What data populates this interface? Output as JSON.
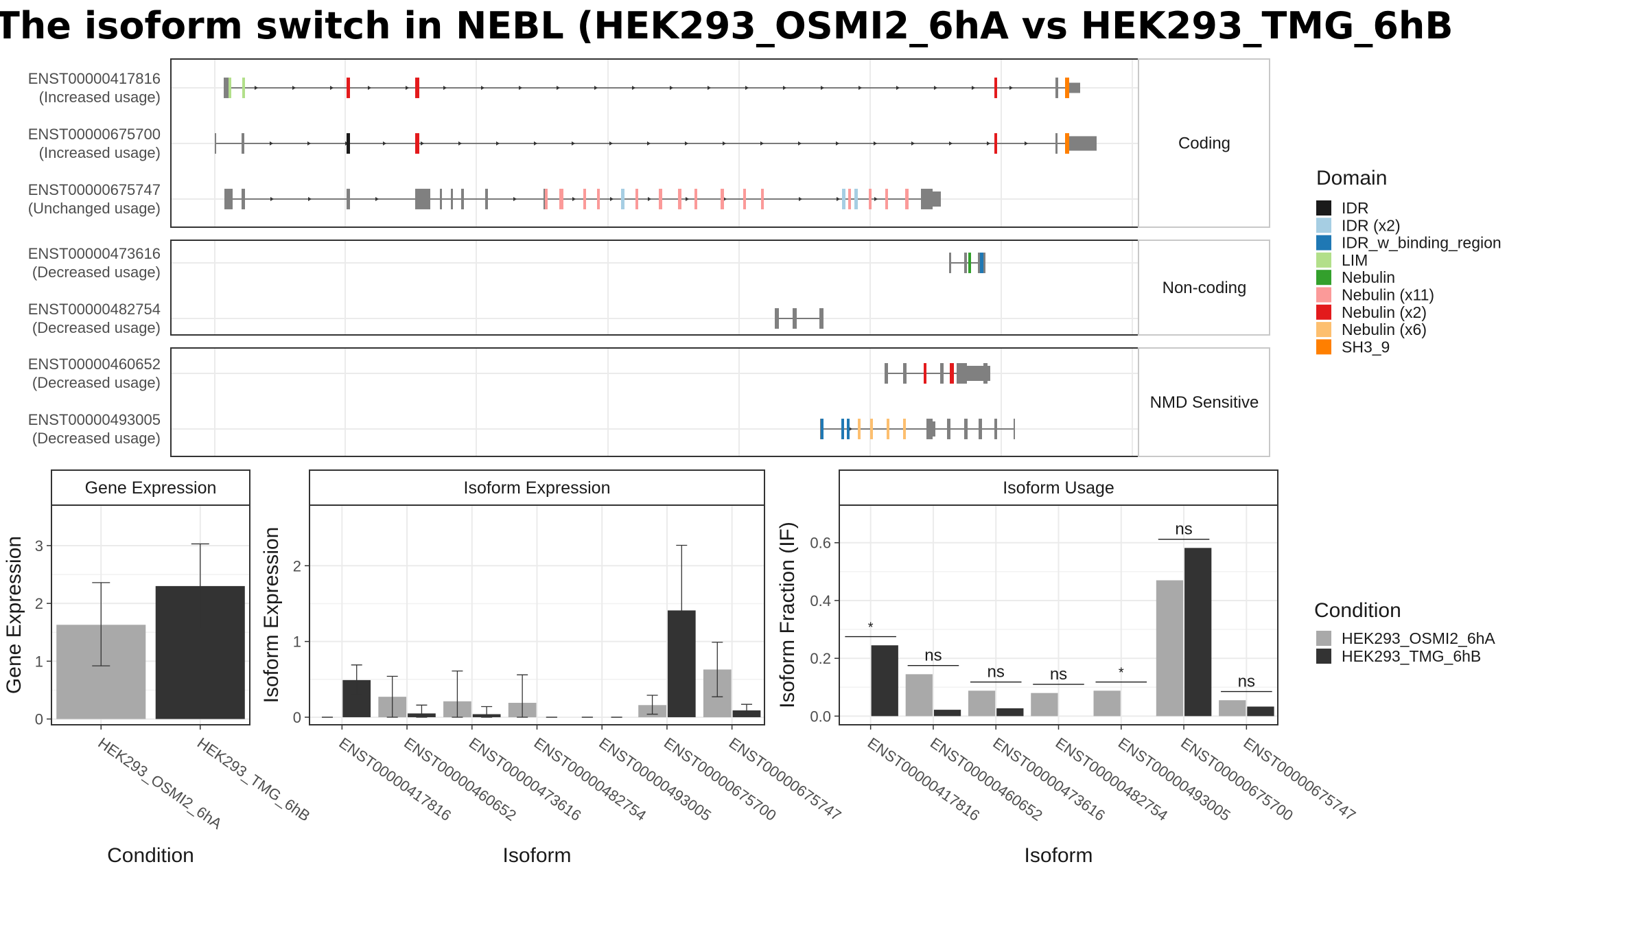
{
  "title": "The isoform switch in NEBL (HEK293_OSMI2_6hA vs HEK293_TMG_6hB",
  "colors": {
    "cond_a": "#A9A9A9",
    "cond_b": "#333333",
    "exon_gray": "#808080",
    "strip_bg": "#FFFFFF",
    "panel_border": "#333333",
    "grid": "#EBEBEB"
  },
  "chart_data": [
    {
      "type": "transcript_structure",
      "facets": [
        {
          "label": "Coding",
          "transcripts": [
            {
              "id": "ENST00000417816",
              "usage": "(Increased usage)"
            },
            {
              "id": "ENST00000675700",
              "usage": "(Increased usage)"
            },
            {
              "id": "ENST00000675747",
              "usage": "(Unchanged usage)"
            }
          ]
        },
        {
          "label": "Non-coding",
          "transcripts": [
            {
              "id": "ENST00000473616",
              "usage": "(Decreased usage)"
            },
            {
              "id": "ENST00000482754",
              "usage": "(Decreased usage)"
            }
          ]
        },
        {
          "label": "NMD Sensitive",
          "transcripts": [
            {
              "id": "ENST00000460652",
              "usage": "(Decreased usage)"
            },
            {
              "id": "ENST00000493005",
              "usage": "(Decreased usage)"
            }
          ]
        }
      ],
      "legend": {
        "title": "Domain",
        "items": [
          {
            "label": "IDR",
            "color": "#1A1A1A"
          },
          {
            "label": "IDR (x2)",
            "color": "#A6CEE3"
          },
          {
            "label": "IDR_w_binding_region",
            "color": "#1F78B4"
          },
          {
            "label": "LIM",
            "color": "#B2DF8A"
          },
          {
            "label": "Nebulin",
            "color": "#33A02C"
          },
          {
            "label": "Nebulin (x11)",
            "color": "#FB9A99"
          },
          {
            "label": "Nebulin (x2)",
            "color": "#E31A1C"
          },
          {
            "label": "Nebulin (x6)",
            "color": "#FDBF6F"
          },
          {
            "label": "SH3_9",
            "color": "#FF7F00"
          }
        ]
      }
    },
    {
      "type": "bar",
      "title": "Gene Expression",
      "xlabel": "Condition",
      "ylabel": "Gene Expression",
      "categories": [
        "HEK293_OSMI2_6hA",
        "HEK293_TMG_6hB"
      ],
      "values": [
        1.63,
        2.3
      ],
      "error_low": [
        0.92,
        1.56
      ],
      "error_high": [
        2.36,
        3.03
      ],
      "ylim": [
        -0.1,
        3.7
      ],
      "yticks": [
        0,
        1,
        2,
        3
      ]
    },
    {
      "type": "bar",
      "title": "Isoform Expression",
      "xlabel": "Isoform",
      "ylabel": "Isoform Expression",
      "categories": [
        "ENST00000417816",
        "ENST00000460652",
        "ENST00000473616",
        "ENST00000482754",
        "ENST00000493005",
        "ENST00000675700",
        "ENST00000675747"
      ],
      "series": [
        {
          "name": "HEK293_OSMI2_6hA",
          "values": [
            0.0,
            0.27,
            0.21,
            0.19,
            0.0,
            0.16,
            0.63
          ],
          "error_low": [
            0.0,
            0.0,
            0.0,
            0.0,
            0.0,
            0.04,
            0.27
          ],
          "error_high": [
            0.0,
            0.54,
            0.61,
            0.56,
            0.0,
            0.29,
            0.99
          ]
        },
        {
          "name": "HEK293_TMG_6hB",
          "values": [
            0.49,
            0.05,
            0.04,
            0.0,
            0.0,
            1.41,
            0.09
          ],
          "error_low": [
            0.3,
            0.0,
            0.0,
            0.0,
            0.0,
            0.56,
            0.03
          ],
          "error_high": [
            0.69,
            0.16,
            0.14,
            0.0,
            0.0,
            2.27,
            0.17
          ]
        }
      ],
      "ylim": [
        -0.1,
        2.8
      ],
      "yticks": [
        0,
        1,
        2
      ]
    },
    {
      "type": "bar",
      "title": "Isoform Usage",
      "xlabel": "Isoform",
      "ylabel": "Isoform Fraction (IF)",
      "categories": [
        "ENST00000417816",
        "ENST00000460652",
        "ENST00000473616",
        "ENST00000482754",
        "ENST00000493005",
        "ENST00000675700",
        "ENST00000675747"
      ],
      "series": [
        {
          "name": "HEK293_OSMI2_6hA",
          "values": [
            0.0,
            0.145,
            0.088,
            0.08,
            0.088,
            0.47,
            0.055
          ]
        },
        {
          "name": "HEK293_TMG_6hB",
          "values": [
            0.245,
            0.022,
            0.027,
            0.0,
            0.0,
            0.582,
            0.033
          ]
        }
      ],
      "significance": [
        "*",
        "ns",
        "ns",
        "ns",
        "*",
        "ns",
        "ns"
      ],
      "ylim": [
        -0.03,
        0.73
      ],
      "yticks": [
        0.0,
        0.2,
        0.4,
        0.6
      ],
      "ytick_labels": [
        "0.0",
        "0.2",
        "0.4",
        "0.6"
      ]
    }
  ],
  "condition_legend": {
    "title": "Condition",
    "items": [
      {
        "label": "HEK293_OSMI2_6hA"
      },
      {
        "label": "HEK293_TMG_6hB"
      }
    ]
  }
}
